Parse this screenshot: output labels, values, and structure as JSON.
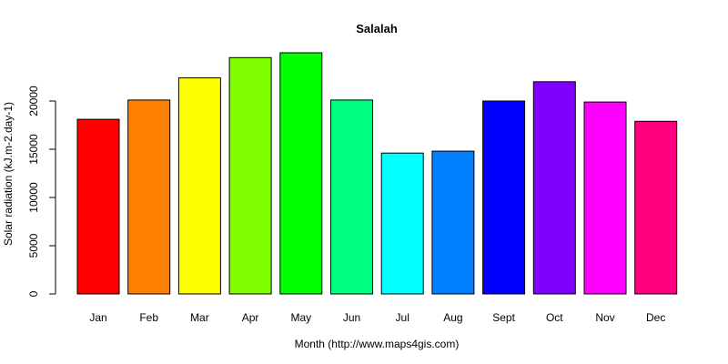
{
  "chart_data": {
    "type": "bar",
    "title": "Salalah",
    "xlabel": "Month (http://www.maps4gis.com)",
    "ylabel": "Solar radiation (kJ.m-2.day-1)",
    "categories": [
      "Jan",
      "Feb",
      "Mar",
      "Apr",
      "May",
      "Jun",
      "Jul",
      "Aug",
      "Sept",
      "Oct",
      "Nov",
      "Dec"
    ],
    "values": [
      18100,
      20100,
      22400,
      24500,
      25000,
      20100,
      14600,
      14800,
      20000,
      22000,
      19900,
      17900
    ],
    "colors": [
      "#FF0000",
      "#FF8000",
      "#FFFF00",
      "#80FF00",
      "#00FF00",
      "#00FF80",
      "#00FFFF",
      "#0080FF",
      "#0000FF",
      "#8000FF",
      "#FF00FF",
      "#FF0080"
    ],
    "yticks": [
      0,
      5000,
      10000,
      15000,
      20000
    ],
    "ylim": [
      0,
      25000
    ],
    "grid": false,
    "legend": "none"
  }
}
